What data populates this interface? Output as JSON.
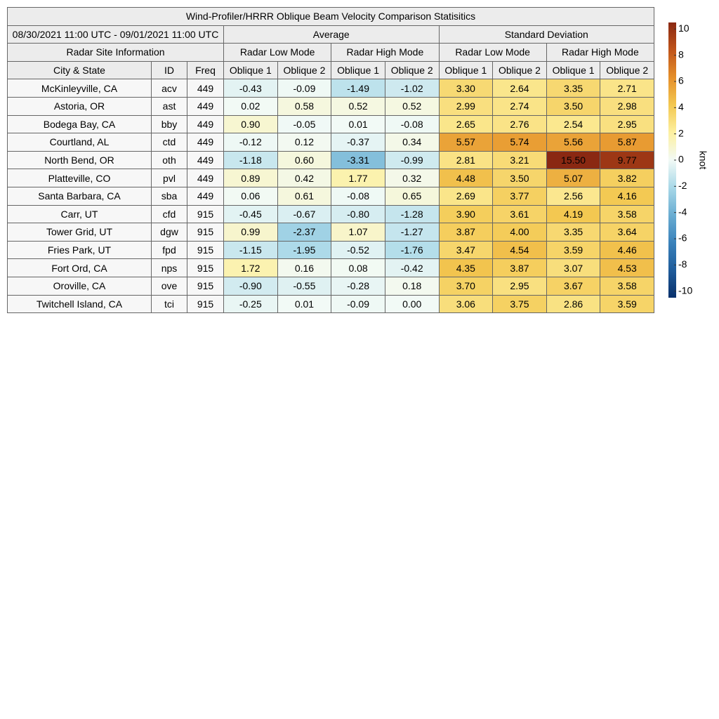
{
  "title": "Wind-Profiler/HRRR Oblique Beam Velocity Comparison Statisitics",
  "date_range": "08/30/2021 11:00 UTC - 09/01/2021 11:00 UTC",
  "groups": [
    "Average",
    "Standard Deviation"
  ],
  "site_header": "Radar Site Information",
  "modes": [
    "Radar Low Mode",
    "Radar High Mode",
    "Radar Low Mode",
    "Radar High Mode"
  ],
  "columns": [
    "City & State",
    "ID",
    "Freq",
    "Oblique 1",
    "Oblique 2",
    "Oblique 1",
    "Oblique 2",
    "Oblique 1",
    "Oblique 2",
    "Oblique 1",
    "Oblique 2"
  ],
  "rows": [
    [
      "McKinleyville, CA",
      "acv",
      "449",
      "-0.43",
      "-0.09",
      "-1.49",
      "-1.02",
      "3.30",
      "2.64",
      "3.35",
      "2.71"
    ],
    [
      "Astoria, OR",
      "ast",
      "449",
      "0.02",
      "0.58",
      "0.52",
      "0.52",
      "2.99",
      "2.74",
      "3.50",
      "2.98"
    ],
    [
      "Bodega Bay, CA",
      "bby",
      "449",
      "0.90",
      "-0.05",
      "0.01",
      "-0.08",
      "2.65",
      "2.76",
      "2.54",
      "2.95"
    ],
    [
      "Courtland, AL",
      "ctd",
      "449",
      "-0.12",
      "0.12",
      "-0.37",
      "0.34",
      "5.57",
      "5.74",
      "5.56",
      "5.87"
    ],
    [
      "North Bend, OR",
      "oth",
      "449",
      "-1.18",
      "0.60",
      "-3.31",
      "-0.99",
      "2.81",
      "3.21",
      "15.50",
      "9.77"
    ],
    [
      "Platteville, CO",
      "pvl",
      "449",
      "0.89",
      "0.42",
      "1.77",
      "0.32",
      "4.48",
      "3.50",
      "5.07",
      "3.82"
    ],
    [
      "Santa Barbara, CA",
      "sba",
      "449",
      "0.06",
      "0.61",
      "-0.08",
      "0.65",
      "2.69",
      "3.77",
      "2.56",
      "4.16"
    ],
    [
      "Carr, UT",
      "cfd",
      "915",
      "-0.45",
      "-0.67",
      "-0.80",
      "-1.28",
      "3.90",
      "3.61",
      "4.19",
      "3.58"
    ],
    [
      "Tower Grid, UT",
      "dgw",
      "915",
      "0.99",
      "-2.37",
      "1.07",
      "-1.27",
      "3.87",
      "4.00",
      "3.35",
      "3.64"
    ],
    [
      "Fries Park, UT",
      "fpd",
      "915",
      "-1.15",
      "-1.95",
      "-0.52",
      "-1.76",
      "3.47",
      "4.54",
      "3.59",
      "4.46"
    ],
    [
      "Fort Ord, CA",
      "nps",
      "915",
      "1.72",
      "0.16",
      "0.08",
      "-0.42",
      "4.35",
      "3.87",
      "3.07",
      "4.53"
    ],
    [
      "Oroville, CA",
      "ove",
      "915",
      "-0.90",
      "-0.55",
      "-0.28",
      "0.18",
      "3.70",
      "2.95",
      "3.67",
      "3.58"
    ],
    [
      "Twitchell Island, CA",
      "tci",
      "915",
      "-0.25",
      "0.01",
      "-0.09",
      "0.00",
      "3.06",
      "3.75",
      "2.86",
      "3.59"
    ]
  ],
  "colorbar": {
    "label": "knot",
    "lim": [
      -10.5,
      10.5
    ],
    "ticks": [
      10,
      8,
      6,
      4,
      2,
      0,
      -2,
      -4,
      -6,
      -8,
      -10
    ],
    "colors": [
      "#08306b",
      "#1f5c9b",
      "#3a82bb",
      "#6aadd2",
      "#a8d8e8",
      "#f2faf6",
      "#fdf0a0",
      "#f3c851",
      "#e58f2a",
      "#c0541a",
      "#8a2812"
    ]
  }
}
